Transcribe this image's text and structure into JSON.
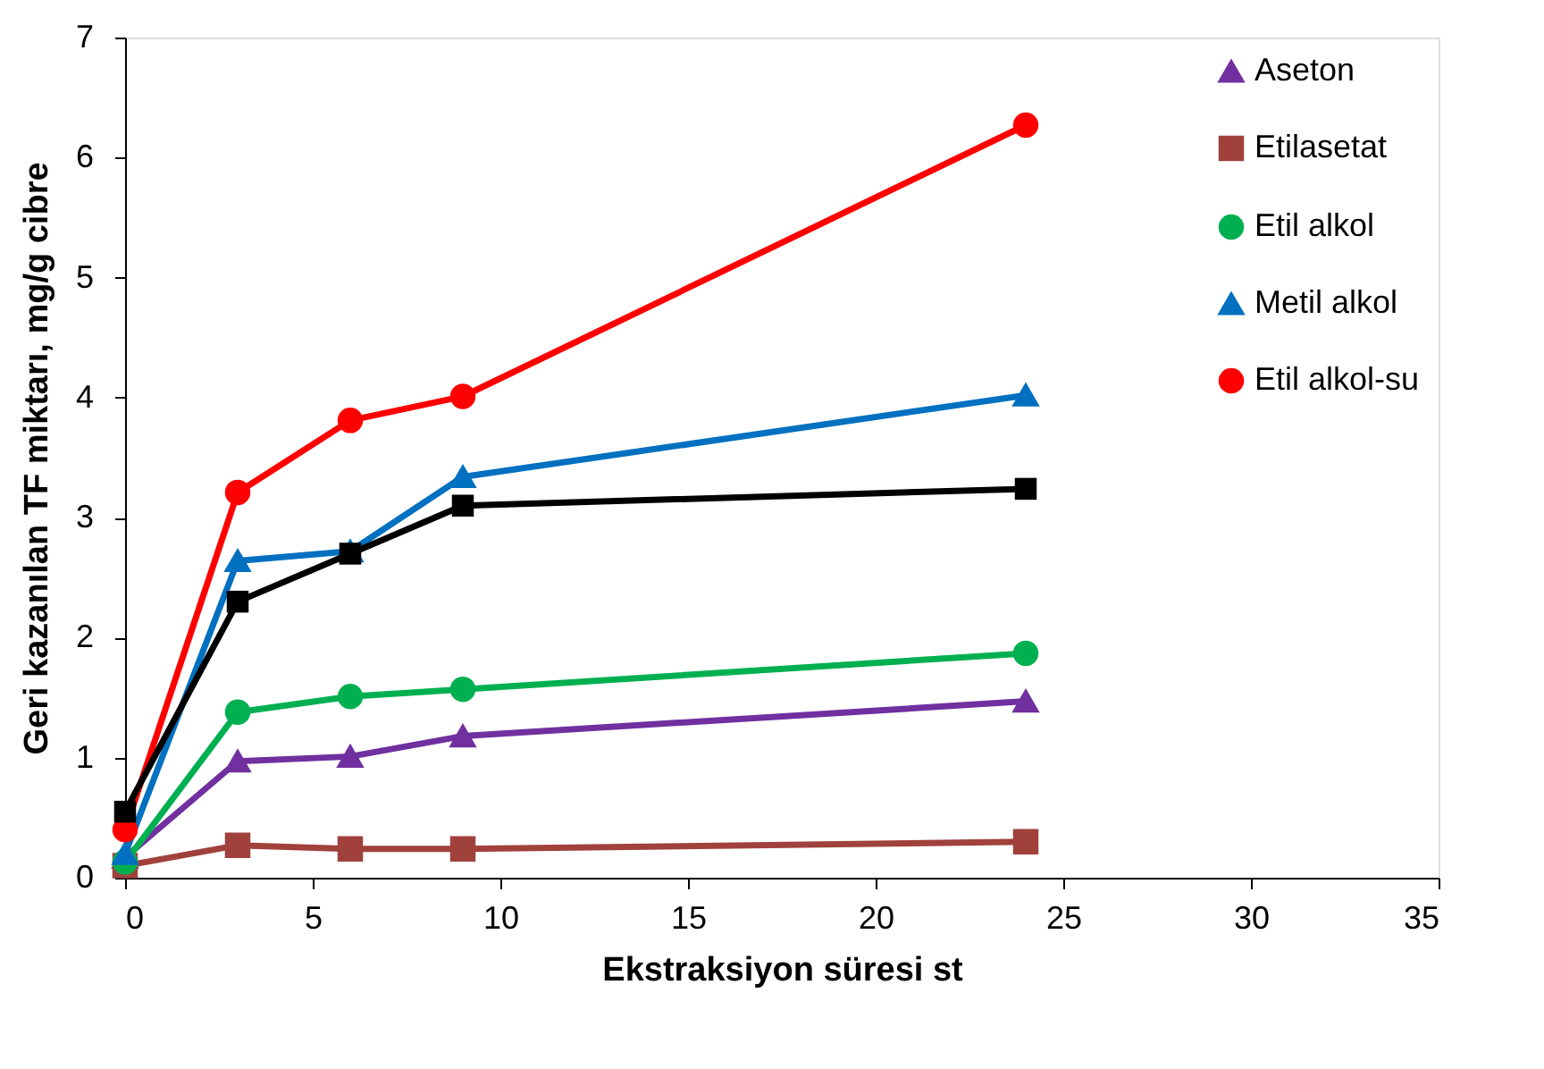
{
  "chart_data": {
    "type": "line",
    "xlabel": "Ekstraksiyon süresi  st",
    "ylabel": "Geri kazanılan TF miktarı, mg/g cibre",
    "x": [
      0,
      3,
      6,
      9,
      24
    ],
    "xlim": [
      0,
      35
    ],
    "xticks": [
      0,
      5,
      10,
      15,
      20,
      25,
      30,
      35
    ],
    "ylim": [
      0,
      7
    ],
    "yticks": [
      0,
      1,
      2,
      3,
      4,
      5,
      6,
      7
    ],
    "grid": false,
    "legend": "top right",
    "line_style": "solid",
    "series": [
      {
        "name": "Aseton",
        "color": "#7030a0",
        "marker": "triangle",
        "values": [
          0.17,
          0.97,
          1.01,
          1.18,
          1.47
        ]
      },
      {
        "name": "Etilasetat",
        "color": "#a0413c",
        "marker": "square",
        "values": [
          0.1,
          0.27,
          0.24,
          0.24,
          0.3
        ]
      },
      {
        "name": "Etil alkol",
        "color": "#00b050",
        "marker": "circle",
        "values": [
          0.13,
          1.38,
          1.51,
          1.57,
          1.87
        ]
      },
      {
        "name": "Metil alkol",
        "color": "#0070c0",
        "marker": "triangle",
        "values": [
          0.2,
          2.64,
          2.72,
          3.34,
          4.02
        ]
      },
      {
        "name": "Etil alkol-su",
        "color": "#ff0000",
        "marker": "circle",
        "values": [
          0.4,
          3.21,
          3.81,
          4.01,
          6.27
        ]
      },
      {
        "color": "#000000",
        "marker": "square",
        "values": [
          0.55,
          2.3,
          2.7,
          3.1,
          3.24
        ]
      }
    ]
  }
}
